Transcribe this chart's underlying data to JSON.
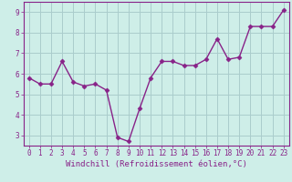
{
  "x": [
    0,
    1,
    2,
    3,
    4,
    5,
    6,
    7,
    8,
    9,
    10,
    11,
    12,
    13,
    14,
    15,
    16,
    17,
    18,
    19,
    20,
    21,
    22,
    23
  ],
  "y": [
    5.8,
    5.5,
    5.5,
    6.6,
    5.6,
    5.4,
    5.5,
    5.2,
    2.9,
    2.7,
    4.3,
    5.8,
    6.6,
    6.6,
    6.4,
    6.4,
    6.7,
    7.7,
    6.7,
    6.8,
    8.3,
    8.3,
    8.3,
    9.1
  ],
  "line_color": "#882288",
  "marker": "D",
  "marker_size": 2.5,
  "bg_color": "#ceeee8",
  "grid_color": "#aacccc",
  "xlabel": "Windchill (Refroidissement éolien,°C)",
  "xlabel_color": "#882288",
  "ylim": [
    2.5,
    9.5
  ],
  "xlim": [
    -0.5,
    23.5
  ],
  "yticks": [
    3,
    4,
    5,
    6,
    7,
    8,
    9
  ],
  "xticks": [
    0,
    1,
    2,
    3,
    4,
    5,
    6,
    7,
    8,
    9,
    10,
    11,
    12,
    13,
    14,
    15,
    16,
    17,
    18,
    19,
    20,
    21,
    22,
    23
  ],
  "tick_label_color": "#882288",
  "tick_fontsize": 5.5,
  "xlabel_fontsize": 6.5,
  "spine_color": "#882288",
  "linewidth": 1.0
}
